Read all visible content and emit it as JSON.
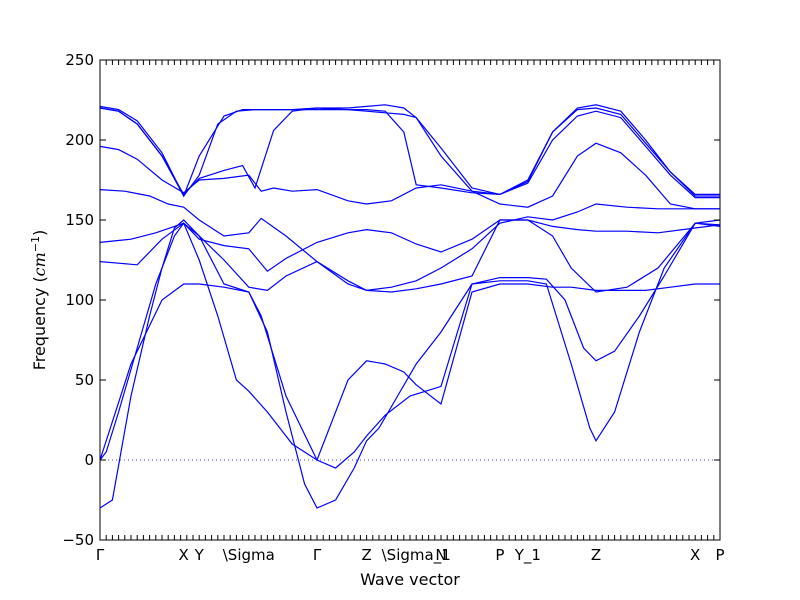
{
  "chart_data": {
    "type": "line",
    "title": "",
    "xlabel": "Wave vector",
    "ylabel_text": "Frequency (",
    "ylabel_unit": "cm",
    "ylabel_exp": "−1",
    "ylabel_close": ")",
    "ylim": [
      -50,
      250
    ],
    "xlim": [
      0,
      1
    ],
    "yticks": [
      -50,
      0,
      50,
      100,
      150,
      200,
      250
    ],
    "line_color": "#0000ff",
    "zero_reference_line": 0,
    "high_symmetry_points": [
      {
        "label": "Γ",
        "x": 0.0
      },
      {
        "label": "X",
        "x": 0.135
      },
      {
        "label": "Y",
        "x": 0.16
      },
      {
        "label": "\\Sigma",
        "x": 0.24
      },
      {
        "label": "Γ",
        "x": 0.35
      },
      {
        "label": "Z",
        "x": 0.43
      },
      {
        "label": "\\Sigma_1",
        "x": 0.51
      },
      {
        "label": "N",
        "x": 0.55
      },
      {
        "label": "P",
        "x": 0.645
      },
      {
        "label": "Y_1",
        "x": 0.69
      },
      {
        "label": "Z",
        "x": 0.8
      },
      {
        "label": "X",
        "x": 0.96
      },
      {
        "label": "P",
        "x": 1.0
      }
    ],
    "series": [
      {
        "x": [
          0,
          0.02,
          0.05,
          0.08,
          0.1,
          0.12,
          0.135,
          0.16,
          0.2,
          0.24,
          0.26,
          0.3,
          0.35,
          0.4,
          0.43,
          0.46,
          0.49,
          0.51,
          0.55,
          0.6,
          0.645,
          0.69,
          0.73,
          0.76,
          0.8,
          0.84,
          0.88,
          0.92,
          0.96,
          1.0
        ],
        "y": [
          -30,
          -25,
          40,
          90,
          120,
          145,
          150,
          140,
          110,
          105,
          90,
          40,
          0,
          50,
          62,
          60,
          55,
          47,
          35,
          105,
          110,
          110,
          108,
          108,
          106,
          106,
          106,
          108,
          110,
          110
        ]
      },
      {
        "x": [
          0,
          0.01,
          0.03,
          0.06,
          0.09,
          0.12,
          0.135,
          0.16,
          0.19,
          0.22,
          0.24,
          0.27,
          0.31,
          0.35,
          0.38,
          0.41,
          0.43,
          0.46,
          0.5,
          0.55,
          0.6,
          0.645,
          0.69,
          0.72,
          0.75,
          0.78,
          0.8,
          0.83,
          0.87,
          0.91,
          0.96,
          1.0
        ],
        "y": [
          0,
          5,
          30,
          70,
          110,
          140,
          148,
          125,
          90,
          50,
          43,
          30,
          10,
          0,
          -5,
          5,
          15,
          28,
          40,
          46,
          110,
          114,
          114,
          113,
          100,
          70,
          62,
          68,
          90,
          115,
          148,
          147
        ]
      },
      {
        "x": [
          0,
          0.05,
          0.1,
          0.135,
          0.16,
          0.2,
          0.24,
          0.27,
          0.3,
          0.33,
          0.35,
          0.38,
          0.41,
          0.43,
          0.45,
          0.48,
          0.51,
          0.55,
          0.6,
          0.645,
          0.69,
          0.72,
          0.76,
          0.79,
          0.8,
          0.83,
          0.87,
          0.91,
          0.96,
          1.0
        ],
        "y": [
          0,
          60,
          100,
          110,
          110,
          108,
          105,
          80,
          30,
          -15,
          -30,
          -25,
          -5,
          12,
          20,
          40,
          60,
          80,
          110,
          112,
          112,
          110,
          60,
          20,
          12,
          30,
          80,
          120,
          148,
          150
        ]
      },
      {
        "x": [
          0,
          0.03,
          0.06,
          0.1,
          0.135,
          0.16,
          0.2,
          0.24,
          0.27,
          0.3,
          0.35,
          0.4,
          0.43,
          0.47,
          0.51,
          0.55,
          0.6,
          0.645,
          0.69,
          0.73,
          0.76,
          0.8,
          0.85,
          0.9,
          0.96,
          1.0
        ],
        "y": [
          124,
          123,
          122,
          138,
          148,
          140,
          125,
          108,
          106,
          115,
          124,
          112,
          106,
          105,
          107,
          110,
          115,
          150,
          150,
          140,
          120,
          105,
          108,
          120,
          148,
          146
        ]
      },
      {
        "x": [
          0,
          0.05,
          0.09,
          0.12,
          0.135,
          0.16,
          0.2,
          0.24,
          0.27,
          0.3,
          0.35,
          0.4,
          0.43,
          0.47,
          0.51,
          0.55,
          0.6,
          0.645,
          0.69,
          0.73,
          0.77,
          0.8,
          0.85,
          0.9,
          0.96,
          1.0
        ],
        "y": [
          136,
          138,
          142,
          146,
          148,
          138,
          134,
          132,
          118,
          126,
          136,
          142,
          144,
          142,
          135,
          130,
          138,
          150,
          150,
          146,
          144,
          143,
          143,
          142,
          145,
          147
        ]
      },
      {
        "x": [
          0,
          0.04,
          0.08,
          0.11,
          0.135,
          0.16,
          0.2,
          0.24,
          0.26,
          0.3,
          0.35,
          0.4,
          0.43,
          0.47,
          0.51,
          0.55,
          0.6,
          0.645,
          0.69,
          0.73,
          0.77,
          0.8,
          0.85,
          0.9,
          0.96,
          1.0
        ],
        "y": [
          169,
          168,
          165,
          160,
          158,
          150,
          140,
          142,
          151,
          140,
          124,
          110,
          106,
          108,
          112,
          120,
          132,
          148,
          152,
          150,
          155,
          160,
          158,
          157,
          157,
          157
        ]
      },
      {
        "x": [
          0,
          0.03,
          0.06,
          0.1,
          0.135,
          0.16,
          0.2,
          0.24,
          0.26,
          0.28,
          0.31,
          0.35,
          0.4,
          0.43,
          0.47,
          0.51,
          0.55,
          0.6,
          0.645,
          0.69,
          0.73,
          0.77,
          0.8,
          0.84,
          0.88,
          0.92,
          0.96,
          1.0
        ],
        "y": [
          196,
          194,
          188,
          175,
          167,
          175,
          176,
          178,
          168,
          170,
          168,
          169,
          162,
          160,
          162,
          170,
          172,
          168,
          160,
          158,
          165,
          190,
          198,
          192,
          178,
          160,
          157,
          157
        ]
      },
      {
        "x": [
          0,
          0.03,
          0.06,
          0.1,
          0.135,
          0.16,
          0.2,
          0.23,
          0.25,
          0.28,
          0.31,
          0.35,
          0.4,
          0.43,
          0.46,
          0.49,
          0.51,
          0.55,
          0.6,
          0.645,
          0.69,
          0.73,
          0.77,
          0.8,
          0.84,
          0.88,
          0.92,
          0.96,
          1.0
        ],
        "y": [
          220,
          218,
          210,
          190,
          166,
          176,
          181,
          184,
          170,
          206,
          218,
          220,
          219,
          219,
          218,
          205,
          172,
          170,
          167,
          166,
          175,
          205,
          220,
          222,
          218,
          200,
          180,
          166,
          166
        ]
      },
      {
        "x": [
          0,
          0.03,
          0.06,
          0.1,
          0.135,
          0.16,
          0.19,
          0.22,
          0.25,
          0.28,
          0.31,
          0.35,
          0.4,
          0.43,
          0.46,
          0.49,
          0.51,
          0.55,
          0.6,
          0.645,
          0.69,
          0.73,
          0.77,
          0.8,
          0.84,
          0.88,
          0.92,
          0.96,
          1.0
        ],
        "y": [
          221,
          219,
          212,
          192,
          165,
          178,
          210,
          218,
          219,
          219,
          219,
          220,
          220,
          221,
          222,
          220,
          214,
          190,
          168,
          166,
          174,
          205,
          219,
          220,
          216,
          198,
          180,
          165,
          165
        ]
      },
      {
        "x": [
          0,
          0.03,
          0.06,
          0.1,
          0.135,
          0.16,
          0.2,
          0.23,
          0.25,
          0.28,
          0.31,
          0.35,
          0.4,
          0.43,
          0.46,
          0.49,
          0.51,
          0.55,
          0.6,
          0.645,
          0.69,
          0.73,
          0.77,
          0.8,
          0.84,
          0.88,
          0.92,
          0.96,
          1.0
        ],
        "y": [
          220,
          218,
          210,
          190,
          165,
          190,
          215,
          219,
          219,
          219,
          219,
          219,
          219,
          218,
          217,
          216,
          214,
          195,
          170,
          166,
          173,
          200,
          215,
          218,
          214,
          196,
          178,
          164,
          164
        ]
      }
    ]
  }
}
